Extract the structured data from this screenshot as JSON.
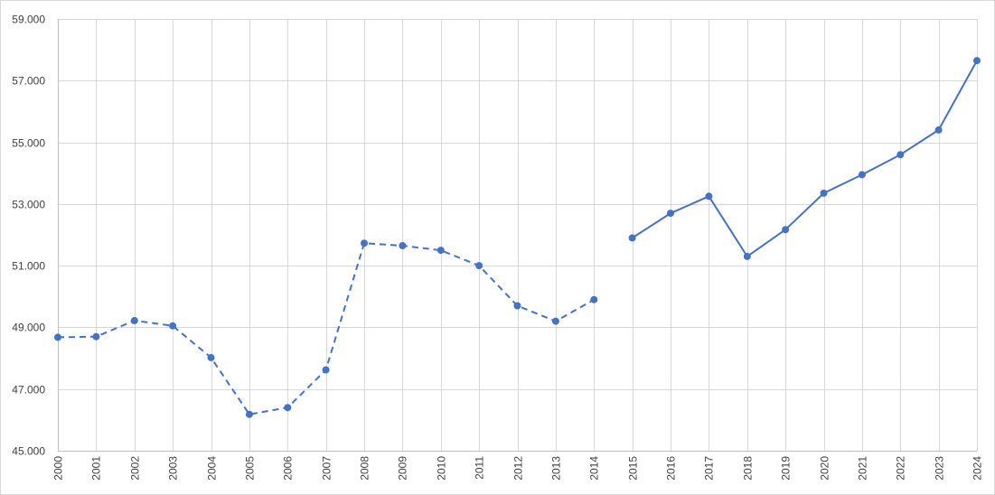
{
  "chart_data": {
    "type": "line",
    "title": "",
    "xlabel": "",
    "ylabel": "",
    "grid": true,
    "legend": "none",
    "ylim": [
      45000,
      59000
    ],
    "y_ticks": [
      45000,
      47000,
      49000,
      51000,
      53000,
      55000,
      57000,
      59000
    ],
    "y_tick_labels": [
      "45.000",
      "47.000",
      "49.000",
      "51.000",
      "53.000",
      "55.000",
      "57.000",
      "59.000"
    ],
    "x": [
      "2000",
      "2001",
      "2002",
      "2003",
      "2004",
      "2005",
      "2006",
      "2007",
      "2008",
      "2009",
      "2010",
      "2011",
      "2012",
      "2013",
      "2014",
      "2015",
      "2016",
      "2017",
      "2018",
      "2019",
      "2020",
      "2021",
      "2022",
      "2023",
      "2024"
    ],
    "color": "#4472c4",
    "series": [
      {
        "line_style": "dashed",
        "x": [
          "2000",
          "2001",
          "2002",
          "2003",
          "2004",
          "2005",
          "2006",
          "2007",
          "2008",
          "2009",
          "2010",
          "2011",
          "2012",
          "2013",
          "2014"
        ],
        "values": [
          48680,
          48700,
          49220,
          49050,
          48020,
          46180,
          46400,
          47620,
          51730,
          51650,
          51500,
          51000,
          49700,
          49200,
          49900
        ]
      },
      {
        "line_style": "solid",
        "x": [
          "2015",
          "2016",
          "2017",
          "2018",
          "2019",
          "2020",
          "2021",
          "2022",
          "2023",
          "2024"
        ],
        "values": [
          51900,
          52700,
          53250,
          51300,
          52170,
          53350,
          53950,
          54600,
          55400,
          57650
        ]
      }
    ]
  }
}
